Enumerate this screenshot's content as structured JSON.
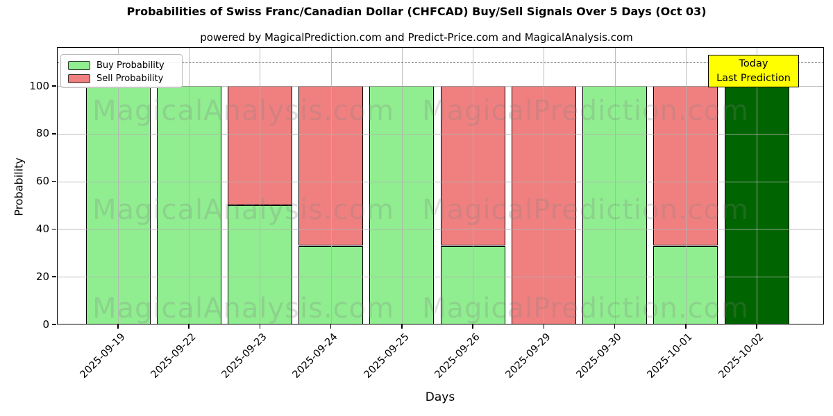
{
  "title": "Probabilities of Swiss Franc/Canadian Dollar (CHFCAD) Buy/Sell Signals Over 5 Days (Oct 03)",
  "subtitle": "powered by MagicalPrediction.com and Predict-Price.com and MagicalAnalysis.com",
  "legend": {
    "items": [
      {
        "label": "Buy Probability",
        "color": "#90ee90"
      },
      {
        "label": "Sell Probability",
        "color": "#f08080"
      }
    ]
  },
  "annotation": {
    "line1": "Today",
    "line2": "Last Prediction",
    "bg_color": "#ffff00"
  },
  "watermarks": {
    "left_text": "MagicalAnalysis.com",
    "right_text": "MagicalPrediction.com"
  },
  "chart_data": {
    "type": "bar",
    "stacked": true,
    "title": "Probabilities of Swiss Franc/Canadian Dollar (CHFCAD) Buy/Sell Signals Over 5 Days (Oct 03)",
    "xlabel": "Days",
    "ylabel": "Probability",
    "categories": [
      "2025-09-19",
      "2025-09-22",
      "2025-09-23",
      "2025-09-24",
      "2025-09-25",
      "2025-09-26",
      "2025-09-29",
      "2025-09-30",
      "2025-10-01",
      "2025-10-02"
    ],
    "series": [
      {
        "name": "Buy Probability",
        "color": "#90ee90",
        "values": [
          100,
          100,
          50,
          33,
          100,
          33,
          0,
          100,
          33,
          100
        ]
      },
      {
        "name": "Sell Probability",
        "color": "#f08080",
        "values": [
          0,
          0,
          50,
          67,
          0,
          67,
          100,
          0,
          67,
          0
        ]
      }
    ],
    "today_highlight": {
      "category": "2025-10-02",
      "color": "#006400"
    },
    "yticks": [
      0,
      20,
      40,
      60,
      80,
      100
    ],
    "ylim": [
      0,
      116.3
    ],
    "dashed_guide_y": 110,
    "grid": true,
    "legend_position": "upper-left",
    "bar_edge_color": "#000000",
    "grid_color": "#b0b0b0",
    "dashed_line_color": "#7a7a7a"
  }
}
